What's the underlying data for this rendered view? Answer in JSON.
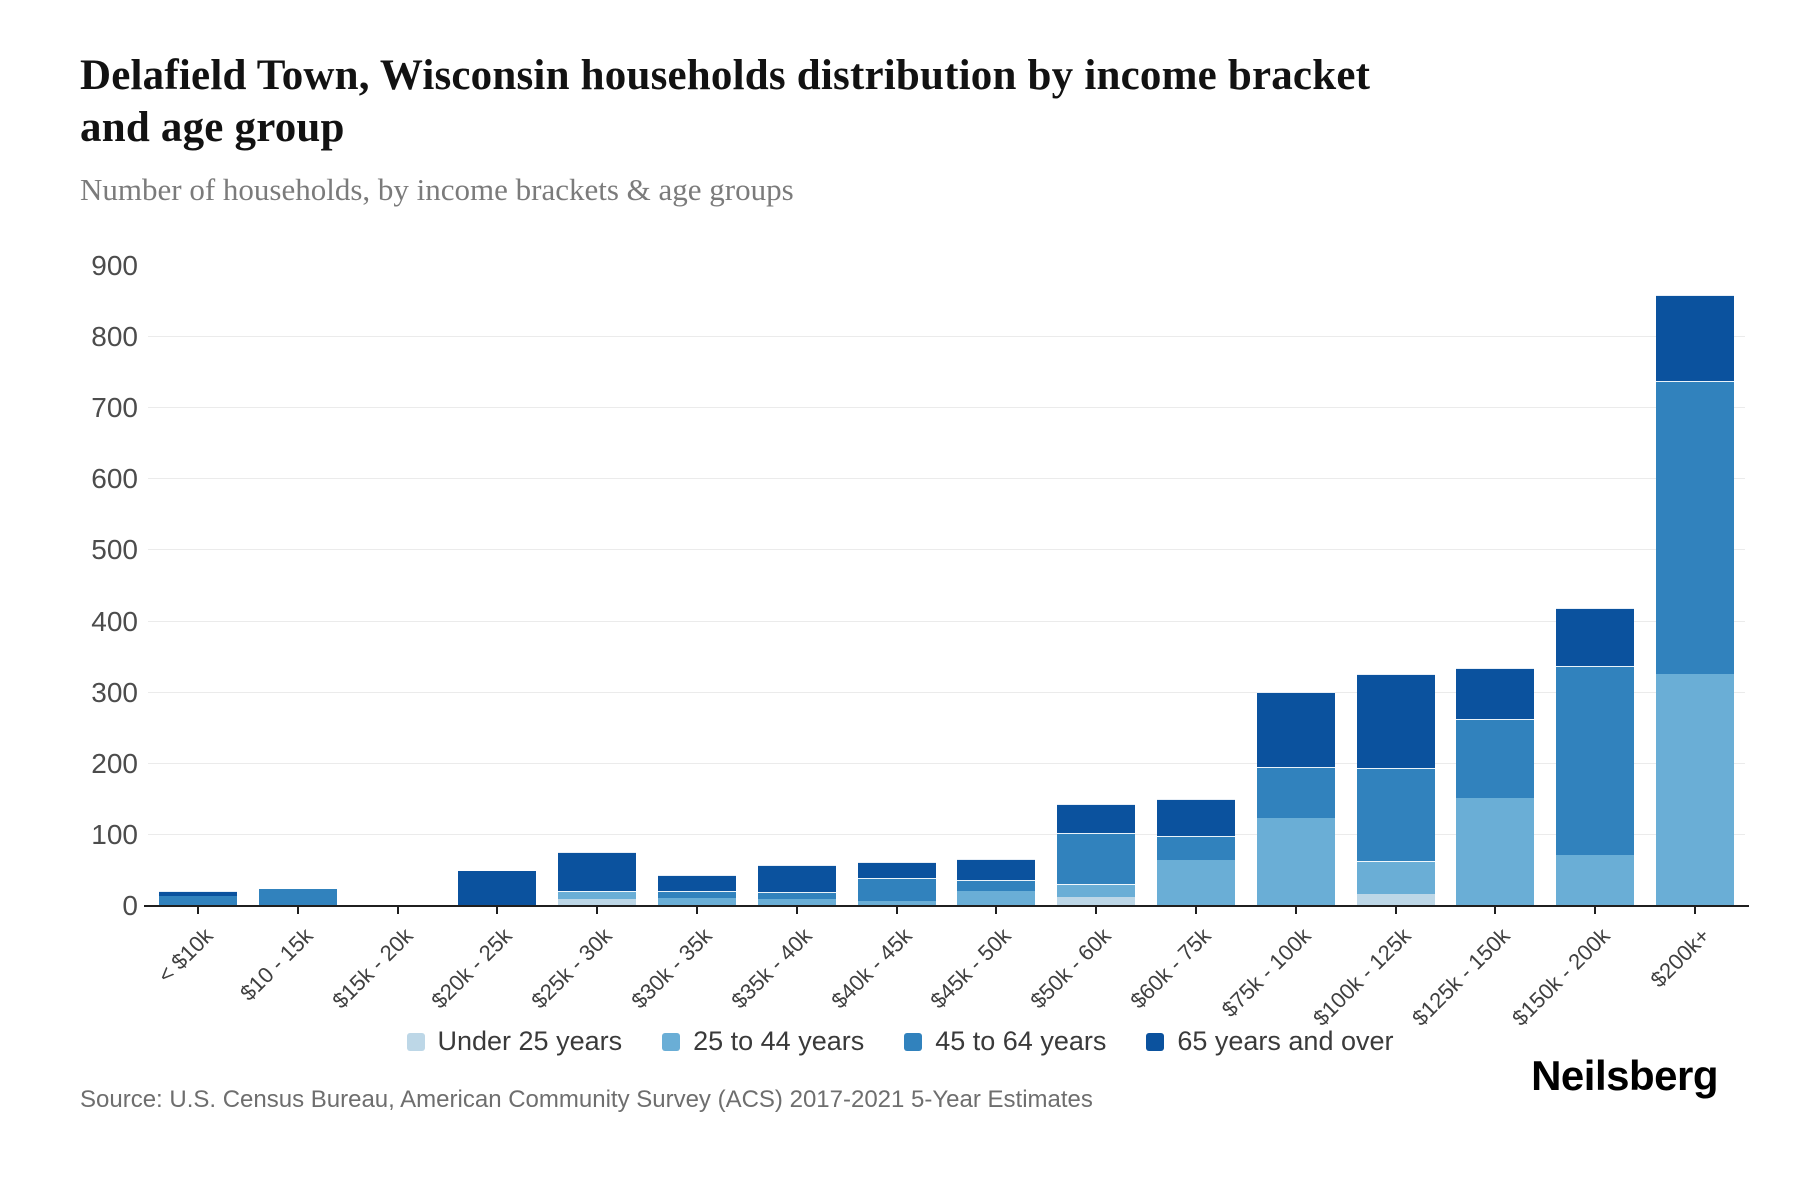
{
  "header": {
    "title": "Delafield Town, Wisconsin households distribution by income bracket and age group",
    "subtitle": "Number of households, by income brackets & age groups"
  },
  "source": {
    "text": "Source: U.S. Census Bureau, American Community Survey (ACS) 2017-2021 5-Year Estimates"
  },
  "logo": {
    "text": "Neilsberg"
  },
  "chart_data": {
    "type": "bar",
    "stacked": true,
    "title": "Delafield Town, Wisconsin households distribution by income bracket and age group",
    "subtitle": "Number of households, by income brackets & age groups",
    "xlabel": "",
    "ylabel": "Number of households",
    "ylim": [
      0,
      900
    ],
    "yticks": [
      0,
      100,
      200,
      300,
      400,
      500,
      600,
      700,
      800,
      900
    ],
    "grid": "horizontal-100-to-800",
    "legend_position": "bottom",
    "categories": [
      "< $10k",
      "$10 - 15k",
      "$15k - 20k",
      "$20k - 25k",
      "$25k - 30k",
      "$30k - 35k",
      "$35k - 40k",
      "$40k - 45k",
      "$45k - 50k",
      "$50k - 60k",
      "$60k - 75k",
      "$75k - 100k",
      "$100k - 125k",
      "$125k - 150k",
      "$150k - 200k",
      "$200k+"
    ],
    "series": [
      {
        "name": "Under 25 years",
        "color": "#bdd7e7",
        "values": [
          0,
          0,
          0,
          0,
          8,
          0,
          0,
          0,
          0,
          11,
          0,
          0,
          15,
          0,
          0,
          0
        ]
      },
      {
        "name": "25 to 44 years",
        "color": "#6aaed6",
        "values": [
          0,
          0,
          0,
          0,
          10,
          10,
          9,
          6,
          19,
          17,
          63,
          123,
          45,
          150,
          70,
          325
        ]
      },
      {
        "name": "45 to 64 years",
        "color": "#3182bd",
        "values": [
          12,
          22,
          0,
          0,
          0,
          8,
          8,
          30,
          15,
          70,
          33,
          70,
          130,
          110,
          265,
          410
        ]
      },
      {
        "name": "65 years and over",
        "color": "#0b529e",
        "values": [
          6,
          0,
          0,
          48,
          54,
          22,
          36,
          22,
          28,
          40,
          50,
          104,
          130,
          70,
          80,
          120
        ]
      }
    ],
    "axis_color": "#1f1f1f",
    "gridline_color": "#ebebeb"
  }
}
